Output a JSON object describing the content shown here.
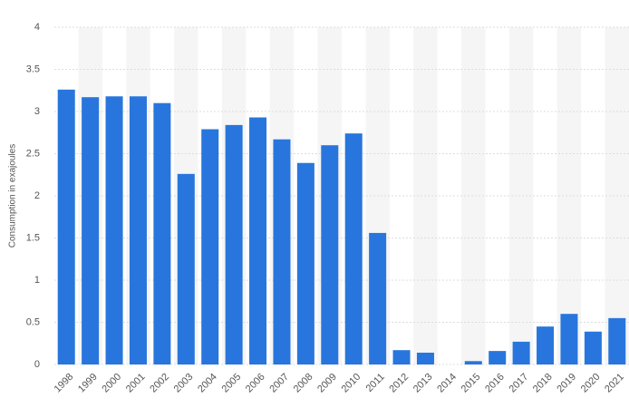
{
  "chart_data": {
    "type": "bar",
    "y_label": "Consumption in exajoules",
    "categories": [
      "1998",
      "1999",
      "2000",
      "2001",
      "2002",
      "2003",
      "2004",
      "2005",
      "2006",
      "2007",
      "2008",
      "2009",
      "2010",
      "2011",
      "2012",
      "2013",
      "2014",
      "2015",
      "2016",
      "2017",
      "2018",
      "2019",
      "2020",
      "2021"
    ],
    "values": [
      3.26,
      3.17,
      3.18,
      3.18,
      3.1,
      2.26,
      2.79,
      2.84,
      2.93,
      2.67,
      2.39,
      2.6,
      2.74,
      1.56,
      0.17,
      0.14,
      0,
      0.04,
      0.16,
      0.27,
      0.45,
      0.6,
      0.39,
      0.55
    ],
    "color": "#2876dd",
    "ylim": [
      0,
      4
    ],
    "yticks": [
      0,
      0.5,
      1,
      1.5,
      2,
      2.5,
      3,
      3.5,
      4
    ],
    "grid": true
  }
}
